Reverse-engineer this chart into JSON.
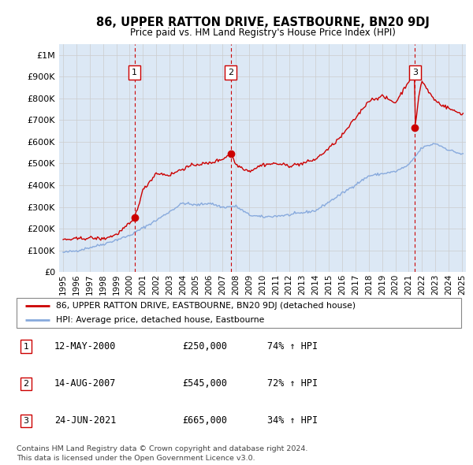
{
  "title": "86, UPPER RATTON DRIVE, EASTBOURNE, BN20 9DJ",
  "subtitle": "Price paid vs. HM Land Registry's House Price Index (HPI)",
  "legend_line1": "86, UPPER RATTON DRIVE, EASTBOURNE, BN20 9DJ (detached house)",
  "legend_line2": "HPI: Average price, detached house, Eastbourne",
  "footer1": "Contains HM Land Registry data © Crown copyright and database right 2024.",
  "footer2": "This data is licensed under the Open Government Licence v3.0.",
  "transactions": [
    {
      "num": 1,
      "date": "12-MAY-2000",
      "price": 250000,
      "pct": "74%",
      "dir": "↑",
      "ref": "HPI"
    },
    {
      "num": 2,
      "date": "14-AUG-2007",
      "price": 545000,
      "pct": "72%",
      "dir": "↑",
      "ref": "HPI"
    },
    {
      "num": 3,
      "date": "24-JUN-2021",
      "price": 665000,
      "pct": "34%",
      "dir": "↑",
      "ref": "HPI"
    }
  ],
  "sale_dates": [
    2000.37,
    2007.62,
    2021.47
  ],
  "sale_prices": [
    250000,
    545000,
    665000
  ],
  "red_color": "#cc0000",
  "blue_color": "#88aadd",
  "grid_color": "#cccccc",
  "bg_color": "#dce8f5",
  "annotation_box_color": "#cc0000",
  "ylim": [
    0,
    1050000
  ],
  "xlim": [
    1994.7,
    2025.3
  ]
}
